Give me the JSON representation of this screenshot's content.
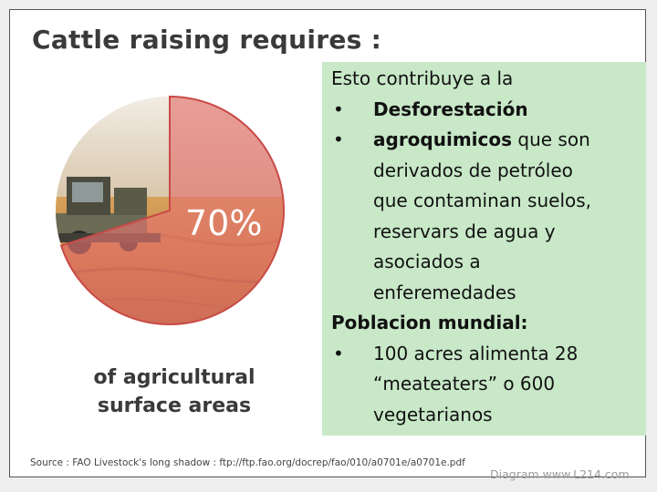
{
  "slide": {
    "title": "Cattle raising requires :",
    "percent_label": "70%",
    "caption_line1": "of agricultural",
    "caption_line2": "surface areas",
    "source": "Source : FAO Livestock's long shadow : ftp://ftp.fao.org/docrep/fao/010/a0701e/a0701e.pdf",
    "watermark": "Diagram www.L214.com"
  },
  "pie": {
    "highlight_share": 0.7,
    "colors": {
      "slice": "#e4736e",
      "rest": "#e7e7e7"
    }
  },
  "note": {
    "intro": "Esto contribuye a la",
    "bullet": "•",
    "item1": "Desforestación",
    "item2_bold": "agroquimicos",
    "item2_rest": " que son",
    "item2_lines": [
      "derivados de petróleo",
      "que contaminan suelos,",
      "reservars de agua y",
      "asociados a",
      "enferemedades"
    ],
    "heading": "Poblacion mundial:",
    "item3": "100 acres alimenta 28",
    "item3_lines": [
      "“meateaters” o 600",
      "vegetarianos"
    ],
    "bg_color": "#c8e8c8"
  }
}
